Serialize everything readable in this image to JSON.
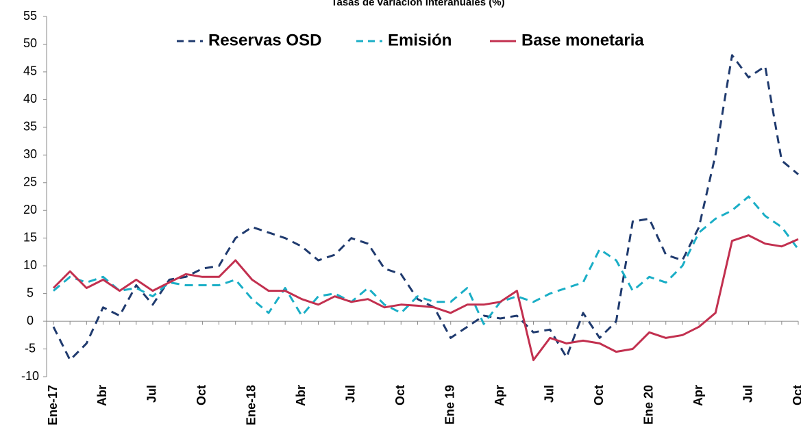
{
  "chart_data": {
    "type": "line",
    "title": "Tasas de variación interanuales (%)",
    "categories": [
      "Ene-17",
      null,
      null,
      "Abr",
      null,
      null,
      "Jul",
      null,
      null,
      "Oct",
      null,
      null,
      "Ene-18",
      null,
      null,
      "Abr",
      null,
      null,
      "Jul",
      null,
      null,
      "Oct",
      null,
      null,
      "Ene 19",
      null,
      null,
      "Apr",
      null,
      null,
      "Jul",
      null,
      null,
      "Oct",
      null,
      null,
      "Ene 20",
      null,
      null,
      "Apr",
      null,
      null,
      "Jul",
      null,
      null,
      "Oct"
    ],
    "series": [
      {
        "name": "Reservas OSD",
        "color": "#1f3a6e",
        "dash": true,
        "values": [
          -1,
          -7,
          -4,
          2.5,
          1,
          6.5,
          3,
          7.5,
          8,
          9.5,
          10,
          15,
          17,
          16,
          15,
          13.5,
          11,
          12,
          15,
          14,
          9.5,
          8.5,
          4,
          2.5,
          -3,
          -1,
          1,
          0.5,
          1,
          -2,
          -1.5,
          -6.5,
          1.5,
          -3,
          0,
          18,
          18.5,
          12,
          11,
          17,
          30,
          48,
          44,
          46,
          29,
          26.5
        ]
      },
      {
        "name": "Emisión",
        "color": "#1aaec6",
        "dash": true,
        "values": [
          5.5,
          8,
          7,
          8,
          5.5,
          6,
          4.5,
          7,
          6.5,
          6.5,
          6.5,
          7.5,
          4,
          1.5,
          6,
          1,
          4.5,
          5,
          3.5,
          6,
          3,
          1.5,
          4.5,
          3.5,
          3.5,
          6,
          -0.5,
          3.5,
          4.5,
          3.5,
          5,
          6,
          7,
          13,
          11,
          5.5,
          8,
          7,
          10,
          16,
          18.5,
          20,
          22.5,
          19,
          17,
          13
        ]
      },
      {
        "name": "Base monetaria",
        "color": "#c2304f",
        "dash": false,
        "values": [
          6,
          9,
          6,
          7.5,
          5.5,
          7.5,
          5.5,
          7,
          8.5,
          8,
          8,
          11,
          7.5,
          5.5,
          5.5,
          4,
          3,
          4.5,
          3.5,
          4,
          2.5,
          3,
          2.8,
          2.5,
          1.5,
          3,
          3,
          3.5,
          5.5,
          -7,
          -3,
          -4,
          -3.5,
          -4,
          -5.5,
          -5,
          -2,
          -3,
          -2.5,
          -1,
          1.5,
          14.5,
          15.5,
          14,
          13.5,
          14.8
        ]
      }
    ],
    "ylim": [
      -10,
      55
    ],
    "yticks": [
      -10,
      -5,
      0,
      5,
      10,
      15,
      20,
      25,
      30,
      35,
      40,
      45,
      50,
      55
    ],
    "legend": "top"
  }
}
